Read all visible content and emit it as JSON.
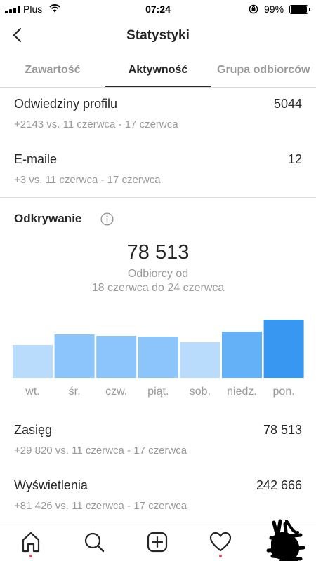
{
  "status_bar": {
    "carrier": "Plus",
    "time": "07:24",
    "battery": "99%",
    "icons": [
      "signal-icon",
      "wifi-icon",
      "rotation-lock-icon",
      "battery-icon"
    ]
  },
  "header": {
    "title": "Statystyki",
    "back_icon": "chevron-left-icon"
  },
  "tabs": [
    {
      "label": "Zawartość",
      "active": false
    },
    {
      "label": "Aktywność",
      "active": true
    },
    {
      "label": "Grupa odbiorców",
      "active": false
    }
  ],
  "interactions": [
    {
      "label": "Odwiedziny profilu",
      "value": "5044",
      "compare": "+2143 vs. 11 czerwca - 17 czerwca"
    },
    {
      "label": "E-maile",
      "value": "12",
      "compare": "+3 vs. 11 czerwca - 17 czerwca"
    }
  ],
  "discovery": {
    "title": "Odkrywanie",
    "info_icon": "info-icon",
    "total": "78 513",
    "total_label": "Odbiorcy od",
    "date_range": "18 czerwca do 24 czerwca",
    "metrics": [
      {
        "label": "Zasięg",
        "value": "78 513",
        "compare": "+29 820 vs. 11 czerwca - 17 czerwca"
      },
      {
        "label": "Wyświetlenia",
        "value": "242 666",
        "compare": "+81 426 vs. 11 czerwca - 17 czerwca"
      }
    ]
  },
  "chart_data": {
    "type": "bar",
    "categories": [
      "wt.",
      "śr.",
      "czw.",
      "piąt.",
      "sob.",
      "niedz.",
      "pon."
    ],
    "values": [
      47,
      62,
      60,
      59,
      51,
      66,
      83
    ],
    "ylim": [
      0,
      100
    ],
    "grid": false,
    "bar_colors": [
      "#b9dcfd",
      "#8cc5fb",
      "#8cc5fb",
      "#8cc5fb",
      "#b9dcfd",
      "#64b1f8",
      "#3897f0"
    ],
    "tick_color": "#9a9a9a"
  },
  "bottom_nav": {
    "items": [
      {
        "name": "home-icon",
        "active": true,
        "badge": true
      },
      {
        "name": "search-icon",
        "active": false,
        "badge": false
      },
      {
        "name": "add-post-icon",
        "active": false,
        "badge": false
      },
      {
        "name": "heart-icon",
        "active": false,
        "badge": true
      },
      {
        "name": "profile-avatar",
        "active": false,
        "badge": false
      }
    ]
  },
  "colors": {
    "text_primary": "#262626",
    "text_secondary": "#9a9a9a",
    "divider": "#dbdbdb",
    "accent": "#3897f0",
    "badge": "#ed4956"
  }
}
